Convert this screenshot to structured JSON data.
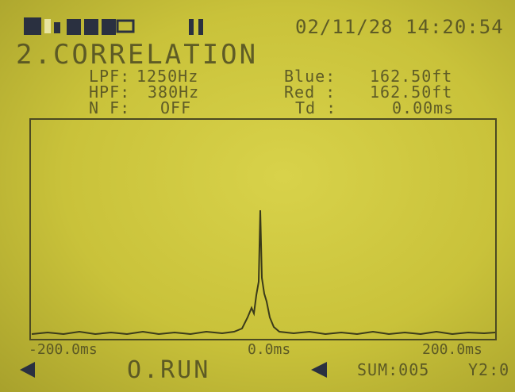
{
  "header": {
    "datetime": "02/11/28 14:20:54",
    "title": "2.CORRELATION"
  },
  "params": [
    {
      "label": "LPF:",
      "value": "1250Hz"
    },
    {
      "label": "HPF:",
      "value": "380Hz"
    },
    {
      "label": "N F:",
      "value": "OFF"
    }
  ],
  "measures": [
    {
      "label": "Blue:",
      "value": "162.50ft"
    },
    {
      "label": "Red :",
      "value": "162.50ft"
    },
    {
      "label": "Td :",
      "value": "0.00ms"
    }
  ],
  "axis": {
    "left": "-200.0ms",
    "center": "0.0ms",
    "right": "200.0ms"
  },
  "footer": {
    "status": "O.RUN",
    "sum": "SUM:005",
    "zoom": "Y2:0"
  }
}
